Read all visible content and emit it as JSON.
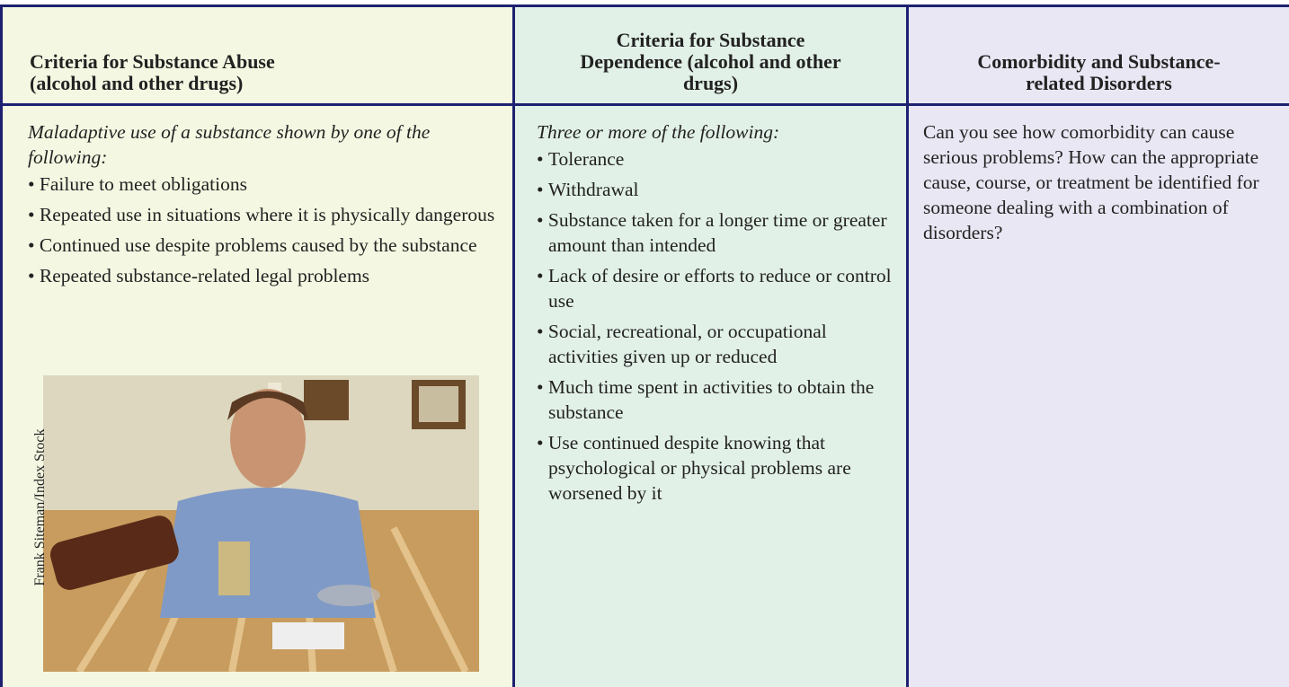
{
  "table": {
    "headers": [
      "Criteria for Substance Abuse (alcohol and other drugs)",
      "Criteria for Substance Dependence (alcohol and other drugs)",
      "Comorbidity and Substance-related Disorders"
    ],
    "abuse": {
      "intro": "Maladaptive use of a substance shown by one of the following:",
      "items": [
        "Failure to meet obligations",
        "Repeated use in situations where it is physically dangerous",
        "Continued use despite problems caused by the substance",
        "Repeated substance-related legal problems"
      ],
      "photo_credit": "Frank Siteman/Index Stock"
    },
    "dependence": {
      "intro": "Three or more of the following:",
      "items": [
        "Tolerance",
        "Withdrawal",
        "Substance taken for a longer time or greater amount than intended",
        "Lack of desire or efforts to reduce or control use",
        "Social, recreational, or occupational activities given up or reduced",
        "Much time spent in activities to obtain the substance",
        "Use continued despite knowing that psychological or physical problems are worsened by it"
      ]
    },
    "comorbidity": {
      "text": "Can you see how comorbidity can cause serious problems? How can the appropriate cause, course, or treatment be identified for someone dealing with a combination of disorders?"
    }
  }
}
